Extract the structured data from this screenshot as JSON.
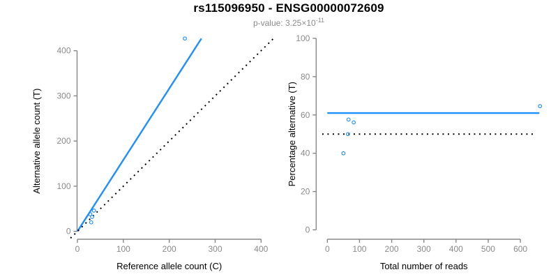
{
  "header": {
    "title": "rs115096950 - ENSG00000072609",
    "pvalue_label": "p-value: 3.25×10",
    "pvalue_exponent": "-11"
  },
  "colors": {
    "accent_blue": "#1E8FFF",
    "axis_gray": "#878787",
    "tick_label_gray": "#8A8A8A",
    "subtitle_gray": "#8A8A8A",
    "text_black": "#000000"
  },
  "chart_data": [
    {
      "type": "scatter",
      "name": "allele-counts",
      "title": "rs115096950 - ENSG00000072609",
      "subtitle": "p-value: 3.25×10^-11",
      "xlabel": "Reference allele count (C)",
      "ylabel": "Alternative allele count (T)",
      "xticks": [
        0,
        100,
        200,
        300,
        400
      ],
      "yticks": [
        0,
        100,
        200,
        300,
        400
      ],
      "xlim": [
        -16,
        432
      ],
      "ylim": [
        -17,
        447
      ],
      "grid": false,
      "legend": null,
      "points": [
        [
          30,
          20
        ],
        [
          32,
          32
        ],
        [
          28,
          38
        ],
        [
          36,
          46
        ],
        [
          234,
          427
        ]
      ],
      "lines": [
        {
          "name": "regression-line",
          "color": "blue",
          "style": "solid",
          "width": 2.4,
          "x1": 0,
          "y1": 0,
          "x2": 270,
          "y2": 427
        },
        {
          "name": "identity-line",
          "color": "black",
          "style": "dotted",
          "width": 2,
          "x1": -15,
          "y1": -15,
          "x2": 430,
          "y2": 430
        }
      ]
    },
    {
      "type": "scatter",
      "name": "percentage-alternative",
      "title": "rs115096950 - ENSG00000072609",
      "subtitle": "p-value: 3.25×10^-11",
      "xlabel": "Total number of reads",
      "ylabel": "Percentage alternative (T)",
      "xticks": [
        0,
        100,
        200,
        300,
        400,
        500,
        600
      ],
      "yticks": [
        0,
        20,
        40,
        60,
        80,
        100
      ],
      "xlim": [
        -27,
        687
      ],
      "ylim": [
        -5,
        105
      ],
      "grid": false,
      "legend": null,
      "points": [
        [
          50,
          40
        ],
        [
          64,
          50
        ],
        [
          66,
          57.6
        ],
        [
          82,
          56.1
        ],
        [
          661,
          64.6
        ]
      ],
      "lines": [
        {
          "name": "mean-percentage-line",
          "color": "blue",
          "style": "solid",
          "width": 2.4,
          "x1": 0,
          "y1": 61,
          "x2": 659,
          "y2": 61
        },
        {
          "name": "fifty-percent-reference-line",
          "color": "black",
          "style": "dotted",
          "width": 2,
          "x1": -16,
          "y1": 50,
          "x2": 646,
          "y2": 50
        }
      ]
    }
  ]
}
